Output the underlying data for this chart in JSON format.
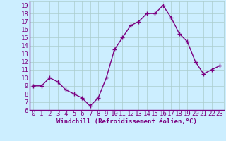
{
  "x": [
    0,
    1,
    2,
    3,
    4,
    5,
    6,
    7,
    8,
    9,
    10,
    11,
    12,
    13,
    14,
    15,
    16,
    17,
    18,
    19,
    20,
    21,
    22,
    23
  ],
  "y": [
    9,
    9,
    10,
    9.5,
    8.5,
    8,
    7.5,
    6.5,
    7.5,
    10,
    13.5,
    15,
    16.5,
    17,
    18,
    18,
    19,
    17.5,
    15.5,
    14.5,
    12,
    10.5,
    11,
    11.5
  ],
  "line_color": "#7b0080",
  "marker": "+",
  "marker_size": 4,
  "bg_color": "#cceeff",
  "grid_color": "#aacccc",
  "xlabel": "Windchill (Refroidissement éolien,°C)",
  "xlabel_color": "#7b0080",
  "tick_color": "#7b0080",
  "ylim": [
    6,
    19.5
  ],
  "xlim": [
    -0.5,
    23.5
  ],
  "yticks": [
    6,
    7,
    8,
    9,
    10,
    11,
    12,
    13,
    14,
    15,
    16,
    17,
    18,
    19
  ],
  "xticks": [
    0,
    1,
    2,
    3,
    4,
    5,
    6,
    7,
    8,
    9,
    10,
    11,
    12,
    13,
    14,
    15,
    16,
    17,
    18,
    19,
    20,
    21,
    22,
    23
  ],
  "line_width": 1.0,
  "font_size": 6.5
}
